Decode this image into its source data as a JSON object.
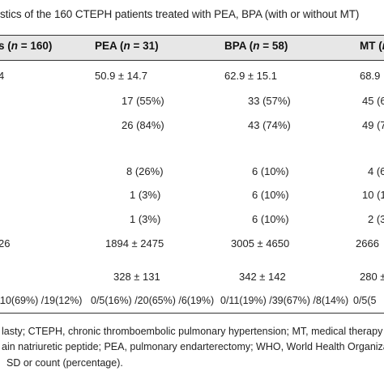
{
  "caption": "stics of the 160 CTEPH patients treated with PEA, BPA (with or without MT)",
  "headers": {
    "col0_pre": "s (",
    "col0_n": "n",
    "col0_post": " = 160)",
    "pea_pre": "PEA (",
    "pea_n": "n",
    "pea_post": " = 31)",
    "bpa_pre": "BPA (",
    "bpa_n": "n",
    "bpa_post": " = 58)",
    "mt_pre": "MT (",
    "mt_n": "n"
  },
  "rows": [
    {
      "c0": "4",
      "pea": "50.9 ± 14.7",
      "bpa": "62.9 ± 15.1",
      "mt": "68.9"
    },
    {
      "c0": "",
      "pea": "17 (55%)",
      "bpa": "33 (57%)",
      "mt": "45 (6"
    },
    {
      "c0": "",
      "pea": "26 (84%)",
      "bpa": "43 (74%)",
      "mt": "49 (7"
    },
    {
      "c0": "",
      "pea": "",
      "bpa": "",
      "mt": ""
    },
    {
      "c0": "",
      "pea": "8 (26%)",
      "bpa": "6 (10%)",
      "mt": "4 (6"
    },
    {
      "c0": "",
      "pea": "1 (3%)",
      "bpa": "6 (10%)",
      "mt": "10 (1"
    },
    {
      "c0": "",
      "pea": "1 (3%)",
      "bpa": "6 (10%)",
      "mt": "2 (3"
    },
    {
      "c0": "26",
      "pea": "1894 ± 2475",
      "bpa": "3005 ± 4650",
      "mt": "2666"
    },
    {
      "c0": "",
      "pea": "328 ± 131",
      "bpa": "342 ± 142",
      "mt": "280 ±"
    },
    {
      "c0": "110(69%) /19(12%)",
      "pea": "0/5(16%) /20(65%) /6(19%)",
      "bpa": "0/11(19%) /39(67%) /8(14%)",
      "mt": "0/5(5"
    }
  ],
  "footnote": {
    "line1": "lasty; CTEPH, chronic thromboembolic pulmonary hypertension; MT, medical therapy (",
    "line2": "ain natriuretic peptide; PEA, pulmonary endarterectomy; WHO, World Health Organizat",
    "line3": "SD or count (percentage)."
  }
}
